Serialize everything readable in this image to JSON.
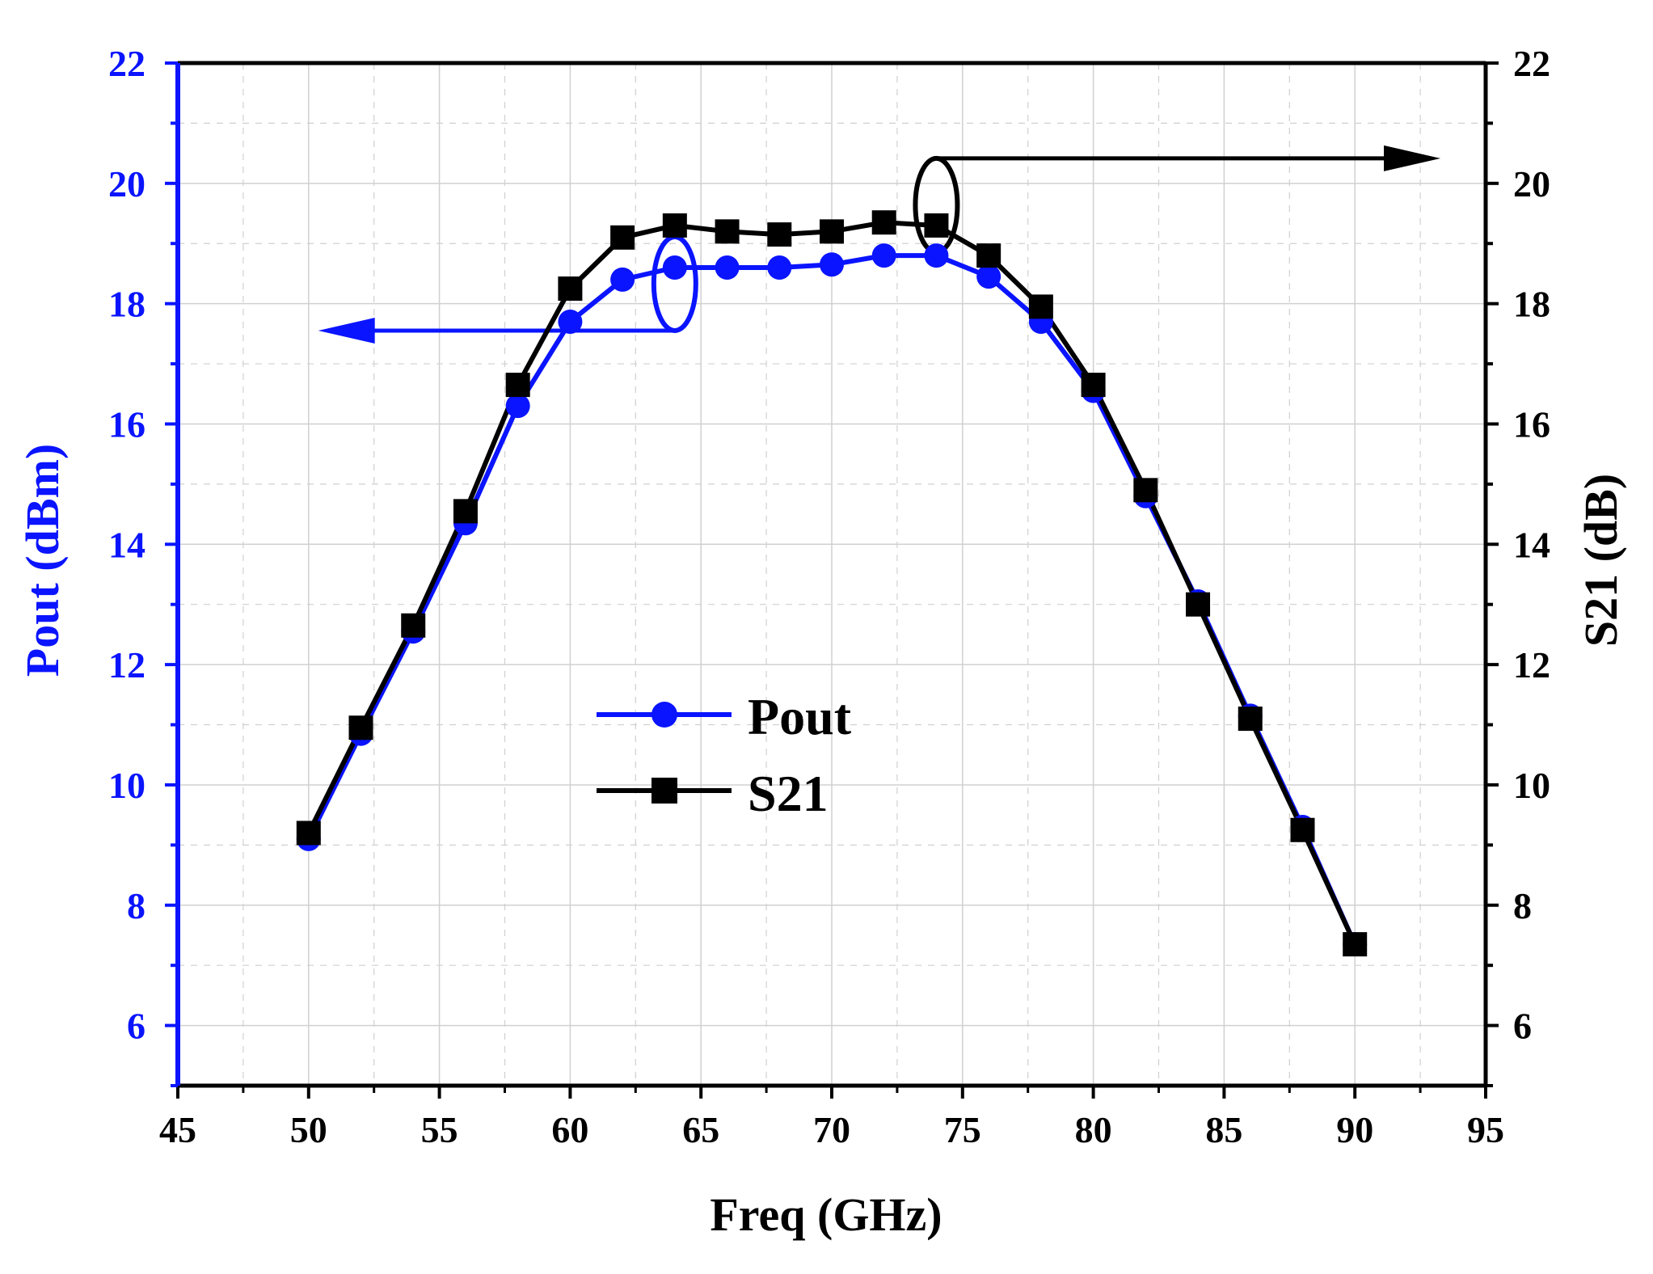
{
  "chart_data": {
    "type": "line",
    "title": "",
    "xlabel": "Freq (GHz)",
    "ylabel_left": "Pout (dBm)",
    "ylabel_right": "S21 (dB)",
    "xlim": [
      45,
      95
    ],
    "ylim_left": [
      5,
      22
    ],
    "ylim_right": [
      5,
      22
    ],
    "x_ticks": [
      45,
      50,
      55,
      60,
      65,
      70,
      75,
      80,
      85,
      90,
      95
    ],
    "y_ticks_left": [
      6,
      8,
      10,
      12,
      14,
      16,
      18,
      20,
      22
    ],
    "y_ticks_right": [
      6,
      8,
      10,
      12,
      14,
      16,
      18,
      20,
      22
    ],
    "grid": true,
    "legend_position": "center",
    "x": [
      50,
      52,
      54,
      56,
      58,
      60,
      62,
      64,
      66,
      68,
      70,
      72,
      74,
      76,
      78,
      80,
      82,
      84,
      86,
      88,
      90
    ],
    "series": [
      {
        "name": "Pout",
        "axis": "left",
        "marker": "circle",
        "color": "#0a14ff",
        "values": [
          9.1,
          10.85,
          12.55,
          14.35,
          16.3,
          17.7,
          18.4,
          18.6,
          18.6,
          18.6,
          18.65,
          18.8,
          18.8,
          18.45,
          17.7,
          16.55,
          14.8,
          13.05,
          11.15,
          9.3,
          7.35
        ]
      },
      {
        "name": "S21",
        "axis": "right",
        "marker": "square",
        "color": "#000000",
        "values": [
          9.2,
          10.95,
          12.65,
          14.55,
          16.65,
          18.25,
          19.1,
          19.3,
          19.2,
          19.15,
          19.2,
          19.35,
          19.3,
          18.8,
          17.95,
          16.65,
          14.9,
          13.0,
          11.1,
          9.25,
          7.35
        ]
      }
    ],
    "annotations": [
      {
        "target": "Pout",
        "marker": "ellipse",
        "arrow": "left",
        "at_x": 64
      },
      {
        "target": "S21",
        "marker": "ellipse",
        "arrow": "right",
        "at_x": 74
      }
    ]
  },
  "colors": {
    "left_axis": "#0a14ff",
    "right_axis": "#000000",
    "grid": "#d0d0d0"
  }
}
